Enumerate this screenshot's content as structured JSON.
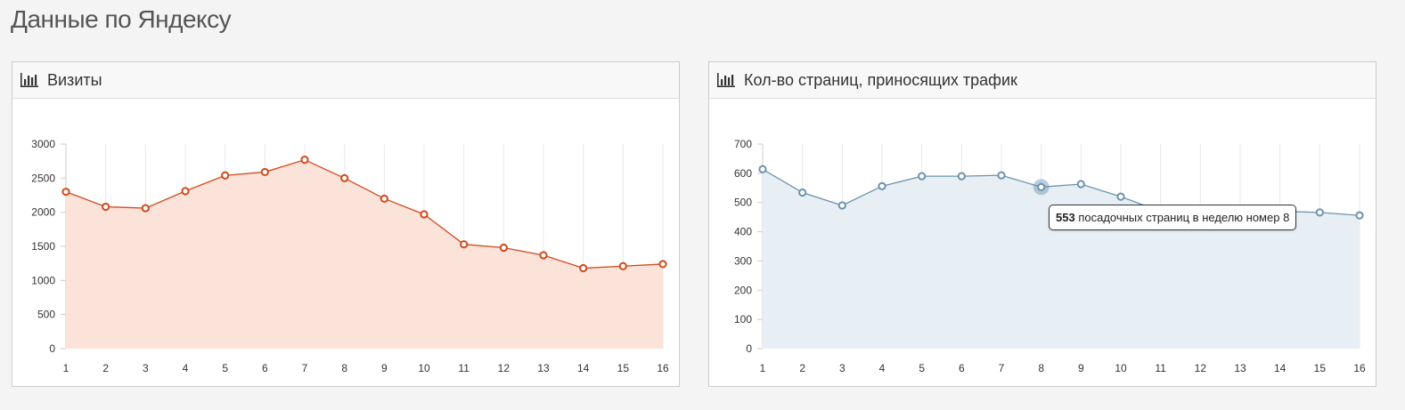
{
  "page_title": "Данные по Яндексу",
  "charts": {
    "visits": {
      "header": "Визиты",
      "chart_data": {
        "type": "area",
        "x": [
          1,
          2,
          3,
          4,
          5,
          6,
          7,
          8,
          9,
          10,
          11,
          12,
          13,
          14,
          15,
          16
        ],
        "categories": [
          "1",
          "2",
          "3",
          "4",
          "5",
          "6",
          "7",
          "8",
          "9",
          "10",
          "11",
          "12",
          "13",
          "14",
          "15",
          "16"
        ],
        "values": [
          2300,
          2080,
          2060,
          2310,
          2540,
          2590,
          2770,
          2500,
          2200,
          1970,
          1530,
          1480,
          1370,
          1180,
          1210,
          1240
        ],
        "yticks": [
          "0",
          "500",
          "1000",
          "1500",
          "2000",
          "2500",
          "3000"
        ],
        "ylim": [
          0,
          3000
        ],
        "grid": "vertical",
        "line_color": "#d2491c",
        "fill_color": "#fce3da"
      }
    },
    "pages": {
      "header": "Кол-во страниц, приносящих трафик",
      "chart_data": {
        "type": "area",
        "x": [
          1,
          2,
          3,
          4,
          5,
          6,
          7,
          8,
          9,
          10,
          11,
          12,
          13,
          14,
          15,
          16
        ],
        "categories": [
          "1",
          "2",
          "3",
          "4",
          "5",
          "6",
          "7",
          "8",
          "9",
          "10",
          "11",
          "12",
          "13",
          "14",
          "15",
          "16"
        ],
        "values": [
          614,
          534,
          490,
          556,
          590,
          590,
          593,
          553,
          563,
          520,
          470,
          470,
          470,
          470,
          466,
          456
        ],
        "yticks": [
          "0",
          "100",
          "200",
          "300",
          "400",
          "500",
          "600",
          "700"
        ],
        "ylim": [
          0,
          700
        ],
        "grid": "vertical",
        "line_color": "#6b93ad",
        "fill_color": "#e8eff4",
        "highlight_index": 7
      },
      "tooltip": {
        "value": "553",
        "text": "посадочных страниц в неделю номер 8"
      }
    }
  }
}
